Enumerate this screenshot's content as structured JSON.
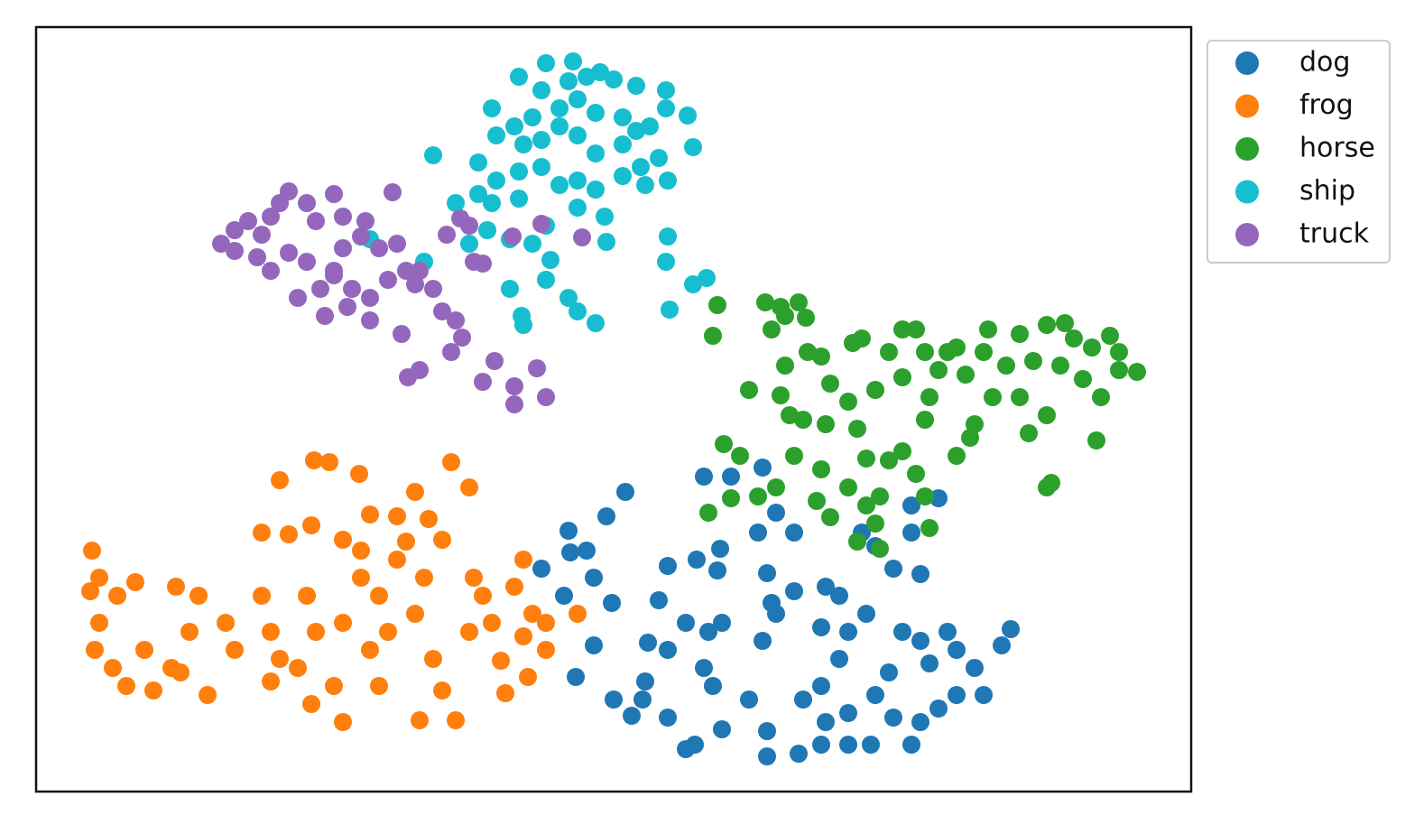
{
  "chart_data": {
    "type": "scatter",
    "xlim": [
      0,
      1280
    ],
    "ylim": [
      0,
      847
    ],
    "legend": "upper right outside",
    "series": [
      {
        "name": "dog",
        "color": "#1f77b4",
        "x": [
          653,
          632,
          590,
          592,
          610,
          560,
          618,
          585,
          638,
          618,
          598,
          640,
          700,
          732,
          758,
          755,
          690,
          720,
          678,
          700,
          745,
          760,
          740,
          750,
          675,
          672,
          660,
          700,
          720,
          760,
          810,
          815,
          840,
          820,
          805,
          790,
          810,
          845,
          875,
          890,
          870,
          900,
          920,
          890,
          870,
          850,
          875,
          900,
          930,
          945,
          960,
          980,
          1010,
          990,
          1020,
          1040,
          1020,
          1000,
          980,
          950,
          925,
          970,
          1050,
          1070,
          1080,
          950,
          980,
          915,
          930,
          970,
          740,
          770,
          805,
          800,
          820,
          840,
          1000,
          970,
          810,
          900,
          870,
          730
        ],
        "y": [
          332,
          305,
          289,
          265,
          267,
          247,
          237,
          217,
          209,
          162,
          127,
          102,
          250,
          257,
          269,
          245,
          212,
          187,
          165,
          157,
          177,
          187,
          137,
          117,
          122,
          102,
          84,
          82,
          47,
          69,
          242,
          209,
          222,
          197,
          167,
          102,
          67,
          42,
          227,
          217,
          182,
          177,
          197,
          147,
          117,
          102,
          77,
          87,
          107,
          132,
          177,
          167,
          177,
          142,
          157,
          137,
          107,
          92,
          77,
          82,
          52,
          52,
          107,
          162,
          180,
          247,
          241,
          287,
          272,
          287,
          349,
          349,
          359,
          287,
          309,
          287,
          325,
          317,
          39,
          52,
          52,
          52
        ]
      },
      {
        "name": "frog",
        "color": "#ff7f0e",
        "x": [
          270,
          308,
          325,
          358,
          460,
          480,
          420,
          370,
          400,
          435,
          250,
          280,
          305,
          340,
          410,
          450,
          62,
          70,
          90,
          110,
          60,
          70,
          65,
          85,
          100,
          130,
          120,
          155,
          180,
          170,
          150,
          190,
          160,
          210,
          220,
          250,
          260,
          270,
          260,
          300,
          310,
          290,
          305,
          340,
          330,
          340,
          360,
          380,
          370,
          380,
          390,
          420,
          430,
          440,
          425,
          465,
          450,
          480,
          485,
          495,
          505,
          540,
          530,
          550,
          565,
          540,
          565,
          515,
          545,
          520,
          600,
          400,
          360
        ],
        "y": [
          345,
          367,
          365,
          352,
          365,
          337,
          332,
          307,
          305,
          302,
          287,
          285,
          295,
          279,
          277,
          279,
          267,
          237,
          217,
          232,
          222,
          187,
          157,
          137,
          117,
          112,
          157,
          227,
          217,
          177,
          137,
          107,
          132,
          187,
          157,
          217,
          177,
          147,
          122,
          217,
          177,
          137,
          97,
          77,
          117,
          187,
          237,
          217,
          157,
          117,
          177,
          197,
          237,
          147,
          79,
          79,
          112,
          177,
          237,
          217,
          187,
          257,
          227,
          197,
          187,
          172,
          157,
          145,
          127,
          109,
          197,
          257,
          267
        ]
      },
      {
        "name": "horse",
        "color": "#2ca02c",
        "x": [
          755,
          750,
          808,
          825,
          845,
          853,
          815,
          830,
          762,
          780,
          790,
          825,
          830,
          835,
          855,
          870,
          880,
          875,
          850,
          905,
          915,
          900,
          930,
          945,
          960,
          975,
          985,
          960,
          990,
          1010,
          1020,
          1000,
          1030,
          1050,
          1055,
          1090,
          1120,
          1140,
          1150,
          1170,
          1190,
          1200,
          1220,
          1200,
          1180,
          1160,
          1135,
          1105,
          1075,
          1090,
          1120,
          1100,
          1060,
          1040,
          1035,
          1020,
          985,
          910,
          920,
          945,
          960,
          975,
          935,
          920,
          900,
          870,
          840,
          820,
          800,
          770,
          745,
          865,
          880,
          930,
          985,
          990,
          910,
          935,
          1175,
          1120,
          1125
        ],
        "y": [
          539,
          505,
          542,
          537,
          542,
          525,
          512,
          527,
          385,
          372,
          445,
          439,
          472,
          417,
          487,
          482,
          452,
          407,
          412,
          497,
          502,
          432,
          445,
          487,
          512,
          512,
          487,
          459,
          437,
          487,
          492,
          467,
          462,
          487,
          512,
          507,
          517,
          519,
          502,
          492,
          505,
          487,
          465,
          467,
          437,
          457,
          472,
          477,
          472,
          437,
          417,
          397,
          437,
          407,
          392,
          372,
          412,
          402,
          369,
          367,
          377,
          352,
          327,
          317,
          337,
          357,
          372,
          337,
          327,
          325,
          309,
          322,
          304,
          297,
          327,
          292,
          277,
          269,
          389,
          337,
          342
        ]
      },
      {
        "name": "ship",
        "color": "#17becf",
        "x": [
          440,
          505,
          535,
          565,
          595,
          590,
          610,
          625,
          640,
          665,
          698,
          722,
          698,
          728,
          680,
          665,
          650,
          620,
          600,
          580,
          560,
          550,
          530,
          510,
          540,
          560,
          580,
          600,
          620,
          650,
          670,
          650,
          690,
          675,
          700,
          620,
          600,
          580,
          560,
          535,
          490,
          510,
          535,
          490,
          465,
          505,
          500,
          480,
          525,
          550,
          565,
          600,
          630,
          632,
          700,
          698,
          728,
          743,
          702,
          570,
          565,
          590,
          600,
          620,
          538,
          540,
          525,
          430,
          370
        ],
        "y": [
          705,
          757,
          792,
          807,
          809,
          787,
          792,
          797,
          789,
          782,
          777,
          749,
          757,
          714,
          737,
          732,
          747,
          752,
          767,
          757,
          777,
          747,
          737,
          727,
          717,
          722,
          737,
          727,
          707,
          717,
          692,
          682,
          702,
          672,
          677,
          667,
          677,
          672,
          692,
          687,
          697,
          677,
          657,
          662,
          652,
          652,
          622,
          607,
          612,
          607,
          627,
          647,
          637,
          609,
          615,
          587,
          562,
          569,
          534,
          589,
          567,
          547,
          532,
          519,
          527,
          517,
          557,
          587,
          612
        ]
      },
      {
        "name": "truck",
        "color": "#9467bd",
        "x": [
          205,
          220,
          235,
          250,
          260,
          270,
          280,
          300,
          330,
          310,
          340,
          365,
          395,
          400,
          380,
          360,
          340,
          330,
          300,
          280,
          260,
          245,
          220,
          290,
          315,
          330,
          350,
          345,
          320,
          370,
          390,
          410,
          425,
          420,
          440,
          450,
          465,
          460,
          472,
          405,
          370,
          425,
          412,
          508,
          555,
          495,
          530,
          530,
          565,
          455,
          470,
          485,
          495,
          560,
          605,
          528,
          480
        ],
        "y": [
          607,
          622,
          632,
          617,
          637,
          652,
          665,
          652,
          662,
          632,
          637,
          632,
          664,
          607,
          602,
          615,
          602,
          577,
          587,
          597,
          577,
          592,
          599,
          547,
          557,
          572,
          557,
          537,
          527,
          547,
          567,
          577,
          577,
          562,
          557,
          532,
          522,
          487,
          503,
          507,
          522,
          467,
          459,
          477,
          469,
          454,
          449,
          429,
          437,
          617,
          635,
          587,
          585,
          629,
          614,
          615,
          627
        ]
      }
    ]
  }
}
